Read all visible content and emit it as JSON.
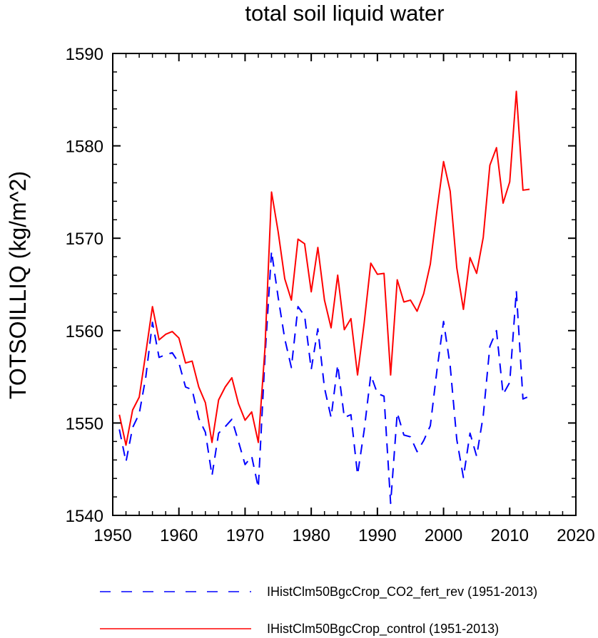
{
  "chart_data": {
    "type": "line",
    "title": "total soil liquid water",
    "xlabel": "",
    "ylabel": "TOTSOILLIQ  (kg/m^2)",
    "xlim": [
      1950,
      2020
    ],
    "ylim": [
      1540,
      1590
    ],
    "xticks": [
      1950,
      1960,
      1970,
      1980,
      1990,
      2000,
      2010,
      2020
    ],
    "yticks": [
      1540,
      1550,
      1560,
      1570,
      1580,
      1590
    ],
    "xtick_labels": [
      "1950",
      "1960",
      "1970",
      "1980",
      "1990",
      "2000",
      "2010",
      "2020"
    ],
    "ytick_labels": [
      "1540",
      "1550",
      "1560",
      "1570",
      "1580",
      "1590"
    ],
    "grid": false,
    "legend_position": "bottom",
    "x": [
      1951,
      1952,
      1953,
      1954,
      1955,
      1956,
      1957,
      1958,
      1959,
      1960,
      1961,
      1962,
      1963,
      1964,
      1965,
      1966,
      1967,
      1968,
      1969,
      1970,
      1971,
      1972,
      1973,
      1974,
      1975,
      1976,
      1977,
      1978,
      1979,
      1980,
      1981,
      1982,
      1983,
      1984,
      1985,
      1986,
      1987,
      1988,
      1989,
      1990,
      1991,
      1992,
      1993,
      1994,
      1995,
      1996,
      1997,
      1998,
      1999,
      2000,
      2001,
      2002,
      2003,
      2004,
      2005,
      2006,
      2007,
      2008,
      2009,
      2010,
      2011,
      2012,
      2013
    ],
    "series": [
      {
        "name": "IHistClm50BgcCrop_CO2_fert_rev (1951-2013)",
        "color": "#0000ff",
        "dash": "dashed",
        "values": [
          1549.3,
          1545.8,
          1549.5,
          1551.0,
          1555.0,
          1560.9,
          1557.1,
          1557.4,
          1557.6,
          1556.5,
          1553.9,
          1553.6,
          1550.5,
          1549.0,
          1544.3,
          1548.9,
          1549.6,
          1550.4,
          1548.0,
          1545.5,
          1546.4,
          1543.0,
          1557.0,
          1568.6,
          1563.6,
          1559.1,
          1556.0,
          1562.6,
          1561.6,
          1555.8,
          1560.2,
          1553.8,
          1550.6,
          1556.3,
          1550.6,
          1550.9,
          1544.4,
          1549.2,
          1555.2,
          1553.2,
          1552.9,
          1541.3,
          1551.1,
          1548.7,
          1548.5,
          1546.9,
          1548.1,
          1549.7,
          1555.7,
          1561.0,
          1556.2,
          1548.2,
          1544.1,
          1548.9,
          1546.4,
          1550.8,
          1558.3,
          1560.0,
          1553.1,
          1554.4,
          1564.3,
          1552.6,
          1552.9
        ]
      },
      {
        "name": "IHistClm50BgcCrop_control (1951-2013)",
        "color": "#ff0000",
        "dash": "solid",
        "values": [
          1550.9,
          1547.6,
          1551.4,
          1552.8,
          1557.6,
          1562.6,
          1559.0,
          1559.6,
          1559.9,
          1559.2,
          1556.5,
          1556.7,
          1553.9,
          1552.2,
          1547.9,
          1552.5,
          1553.9,
          1554.9,
          1552.1,
          1550.3,
          1551.2,
          1547.9,
          1558.0,
          1575.0,
          1570.7,
          1565.6,
          1563.3,
          1569.9,
          1569.4,
          1564.2,
          1569.0,
          1563.3,
          1560.3,
          1566.0,
          1560.1,
          1561.3,
          1555.2,
          1560.8,
          1567.3,
          1566.1,
          1566.2,
          1555.2,
          1565.5,
          1563.1,
          1563.3,
          1562.1,
          1564.0,
          1567.2,
          1573.0,
          1578.3,
          1575.1,
          1566.8,
          1562.3,
          1567.9,
          1566.2,
          1570.1,
          1577.9,
          1579.8,
          1573.8,
          1576.1,
          1585.9,
          1575.2,
          1575.3
        ]
      }
    ]
  }
}
